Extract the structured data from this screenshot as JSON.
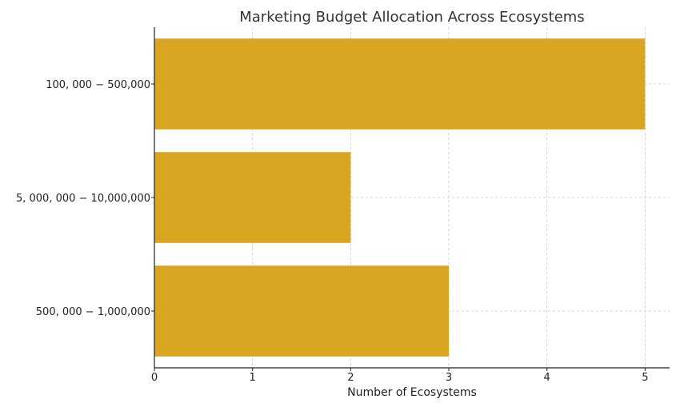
{
  "chart_data": {
    "type": "bar",
    "orientation": "horizontal",
    "title": "Marketing Budget Allocation Across Ecosystems",
    "xlabel": "Number of Ecosystems",
    "ylabel": "",
    "categories": [
      "100, 000 − 500,000",
      "5, 000, 000 − 10,000,000",
      "500, 000 − 1,000,000"
    ],
    "values": [
      5,
      2,
      3
    ],
    "xlim": [
      0,
      5.25
    ],
    "xticks": [
      0,
      1,
      2,
      3,
      4,
      5
    ],
    "grid": true,
    "bar_color": "#DAA520"
  }
}
